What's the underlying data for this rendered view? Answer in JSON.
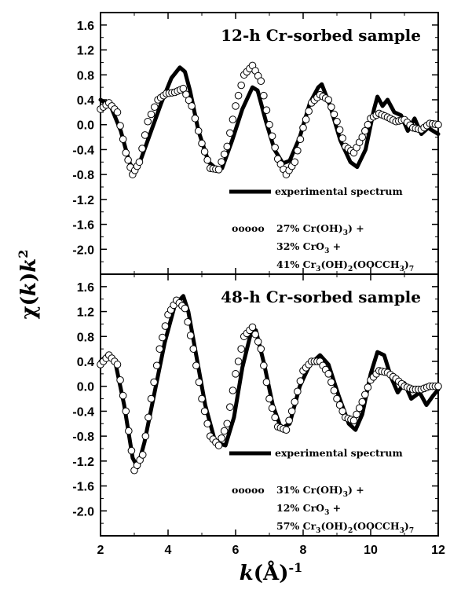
{
  "chart_data": {
    "type": "line",
    "xlabel": "k(Å)-1",
    "ylabel": "χ(k)k2",
    "xlim": [
      2,
      12
    ],
    "xticks": [
      "2",
      "4",
      "6",
      "8",
      "10",
      "12"
    ],
    "panels": [
      {
        "title": "12-h Cr-sorbed sample",
        "ylim": [
          -2.4,
          1.8
        ],
        "yticks": [
          "1.6",
          "1.2",
          "0.8",
          "0.4",
          "0.0",
          "-0.4",
          "-0.8",
          "-1.2",
          "-1.6",
          "-2.0"
        ],
        "legend": {
          "line_label": "experimental spectrum",
          "marker_symbol": "ooooo",
          "fit_lines": [
            "27% Cr(OH)3) +",
            "32% CrO3 +",
            "41% Cr3(OH)2(OOCCH3)7"
          ]
        },
        "series": [
          {
            "style": "solid",
            "x": [
              2.0,
              2.3,
              2.6,
              2.85,
              3.0,
              3.2,
              3.5,
              3.8,
              4.1,
              4.35,
              4.5,
              4.65,
              4.9,
              5.2,
              5.45,
              5.6,
              5.9,
              6.2,
              6.5,
              6.65,
              6.9,
              7.15,
              7.4,
              7.6,
              7.9,
              8.2,
              8.45,
              8.55,
              8.8,
              9.1,
              9.4,
              9.6,
              9.85,
              10.1,
              10.2,
              10.35,
              10.5,
              10.7,
              10.9,
              11.1,
              11.3,
              11.5,
              11.7,
              12.0
            ],
            "y": [
              0.4,
              0.3,
              -0.1,
              -0.6,
              -0.75,
              -0.55,
              -0.1,
              0.35,
              0.75,
              0.92,
              0.85,
              0.55,
              -0.1,
              -0.6,
              -0.72,
              -0.7,
              -0.25,
              0.25,
              0.6,
              0.55,
              0.05,
              -0.4,
              -0.62,
              -0.58,
              -0.2,
              0.35,
              0.6,
              0.65,
              0.3,
              -0.25,
              -0.6,
              -0.68,
              -0.4,
              0.25,
              0.45,
              0.3,
              0.4,
              0.2,
              0.15,
              -0.1,
              0.1,
              -0.15,
              -0.05,
              -0.15
            ]
          },
          {
            "style": "circles",
            "x": [
              2.0,
              2.25,
              2.5,
              2.75,
              2.95,
              3.15,
              3.4,
              3.7,
              3.95,
              4.2,
              4.45,
              4.7,
              5.0,
              5.25,
              5.5,
              5.75,
              6.0,
              6.25,
              6.5,
              6.75,
              7.0,
              7.25,
              7.5,
              7.75,
              8.0,
              8.25,
              8.5,
              8.75,
              9.0,
              9.25,
              9.5,
              9.75,
              10.0,
              10.25,
              10.5,
              10.75,
              11.0,
              11.25,
              11.5,
              11.75,
              12.0
            ],
            "y": [
              0.25,
              0.35,
              0.2,
              -0.45,
              -0.8,
              -0.6,
              0.05,
              0.4,
              0.5,
              0.52,
              0.58,
              0.3,
              -0.3,
              -0.7,
              -0.72,
              -0.35,
              0.3,
              0.8,
              0.95,
              0.7,
              0.0,
              -0.55,
              -0.8,
              -0.6,
              -0.05,
              0.35,
              0.48,
              0.4,
              0.05,
              -0.35,
              -0.45,
              -0.2,
              0.1,
              0.18,
              0.12,
              0.05,
              0.08,
              -0.05,
              -0.08,
              0.02,
              0.0
            ]
          }
        ]
      },
      {
        "title": "48-h Cr-sorbed sample",
        "ylim": [
          -2.4,
          1.8
        ],
        "yticks": [
          "1.6",
          "1.2",
          "0.8",
          "0.4",
          "0.0",
          "-0.4",
          "-0.8",
          "-1.2",
          "-1.6",
          "-2.0"
        ],
        "legend": {
          "line_label": "experimental spectrum",
          "marker_symbol": "ooooo",
          "fit_lines": [
            "31% Cr(OH)3) +",
            "12% CrO3 +",
            "57% Cr3(OH)2(OOCCH3)7"
          ]
        },
        "series": [
          {
            "style": "solid",
            "x": [
              2.0,
              2.2,
              2.45,
              2.7,
              2.95,
              3.1,
              3.3,
              3.6,
              3.9,
              4.2,
              4.45,
              4.6,
              4.8,
              5.1,
              5.4,
              5.7,
              5.95,
              6.2,
              6.45,
              6.6,
              6.85,
              7.1,
              7.35,
              7.6,
              7.9,
              8.2,
              8.5,
              8.75,
              9.05,
              9.35,
              9.55,
              9.75,
              10.0,
              10.2,
              10.4,
              10.6,
              10.8,
              11.0,
              11.2,
              11.45,
              11.65,
              11.85,
              12.0
            ],
            "y": [
              0.4,
              0.5,
              0.35,
              -0.3,
              -1.15,
              -1.3,
              -0.9,
              -0.1,
              0.7,
              1.3,
              1.45,
              1.2,
              0.6,
              -0.3,
              -0.9,
              -0.95,
              -0.5,
              0.3,
              0.85,
              0.9,
              0.35,
              -0.3,
              -0.68,
              -0.6,
              0.0,
              0.35,
              0.5,
              0.35,
              -0.15,
              -0.6,
              -0.7,
              -0.45,
              0.2,
              0.55,
              0.5,
              0.15,
              -0.1,
              0.05,
              -0.2,
              -0.1,
              -0.3,
              -0.15,
              -0.05
            ]
          },
          {
            "style": "circles",
            "x": [
              2.0,
              2.25,
              2.5,
              2.75,
              3.0,
              3.25,
              3.5,
              3.75,
              4.0,
              4.25,
              4.5,
              4.75,
              5.0,
              5.25,
              5.5,
              5.75,
              6.0,
              6.25,
              6.5,
              6.75,
              7.0,
              7.25,
              7.5,
              7.75,
              8.0,
              8.25,
              8.5,
              8.75,
              9.0,
              9.25,
              9.5,
              9.75,
              10.0,
              10.25,
              10.5,
              10.75,
              11.0,
              11.25,
              11.5,
              11.75,
              12.0
            ],
            "y": [
              0.35,
              0.5,
              0.35,
              -0.4,
              -1.35,
              -1.1,
              -0.2,
              0.6,
              1.15,
              1.38,
              1.25,
              0.6,
              -0.2,
              -0.8,
              -0.95,
              -0.6,
              0.2,
              0.8,
              0.95,
              0.6,
              -0.2,
              -0.65,
              -0.7,
              -0.25,
              0.25,
              0.4,
              0.4,
              0.2,
              -0.2,
              -0.5,
              -0.55,
              -0.25,
              0.1,
              0.25,
              0.22,
              0.12,
              0.0,
              -0.05,
              -0.05,
              0.0,
              0.0
            ]
          }
        ]
      }
    ]
  }
}
